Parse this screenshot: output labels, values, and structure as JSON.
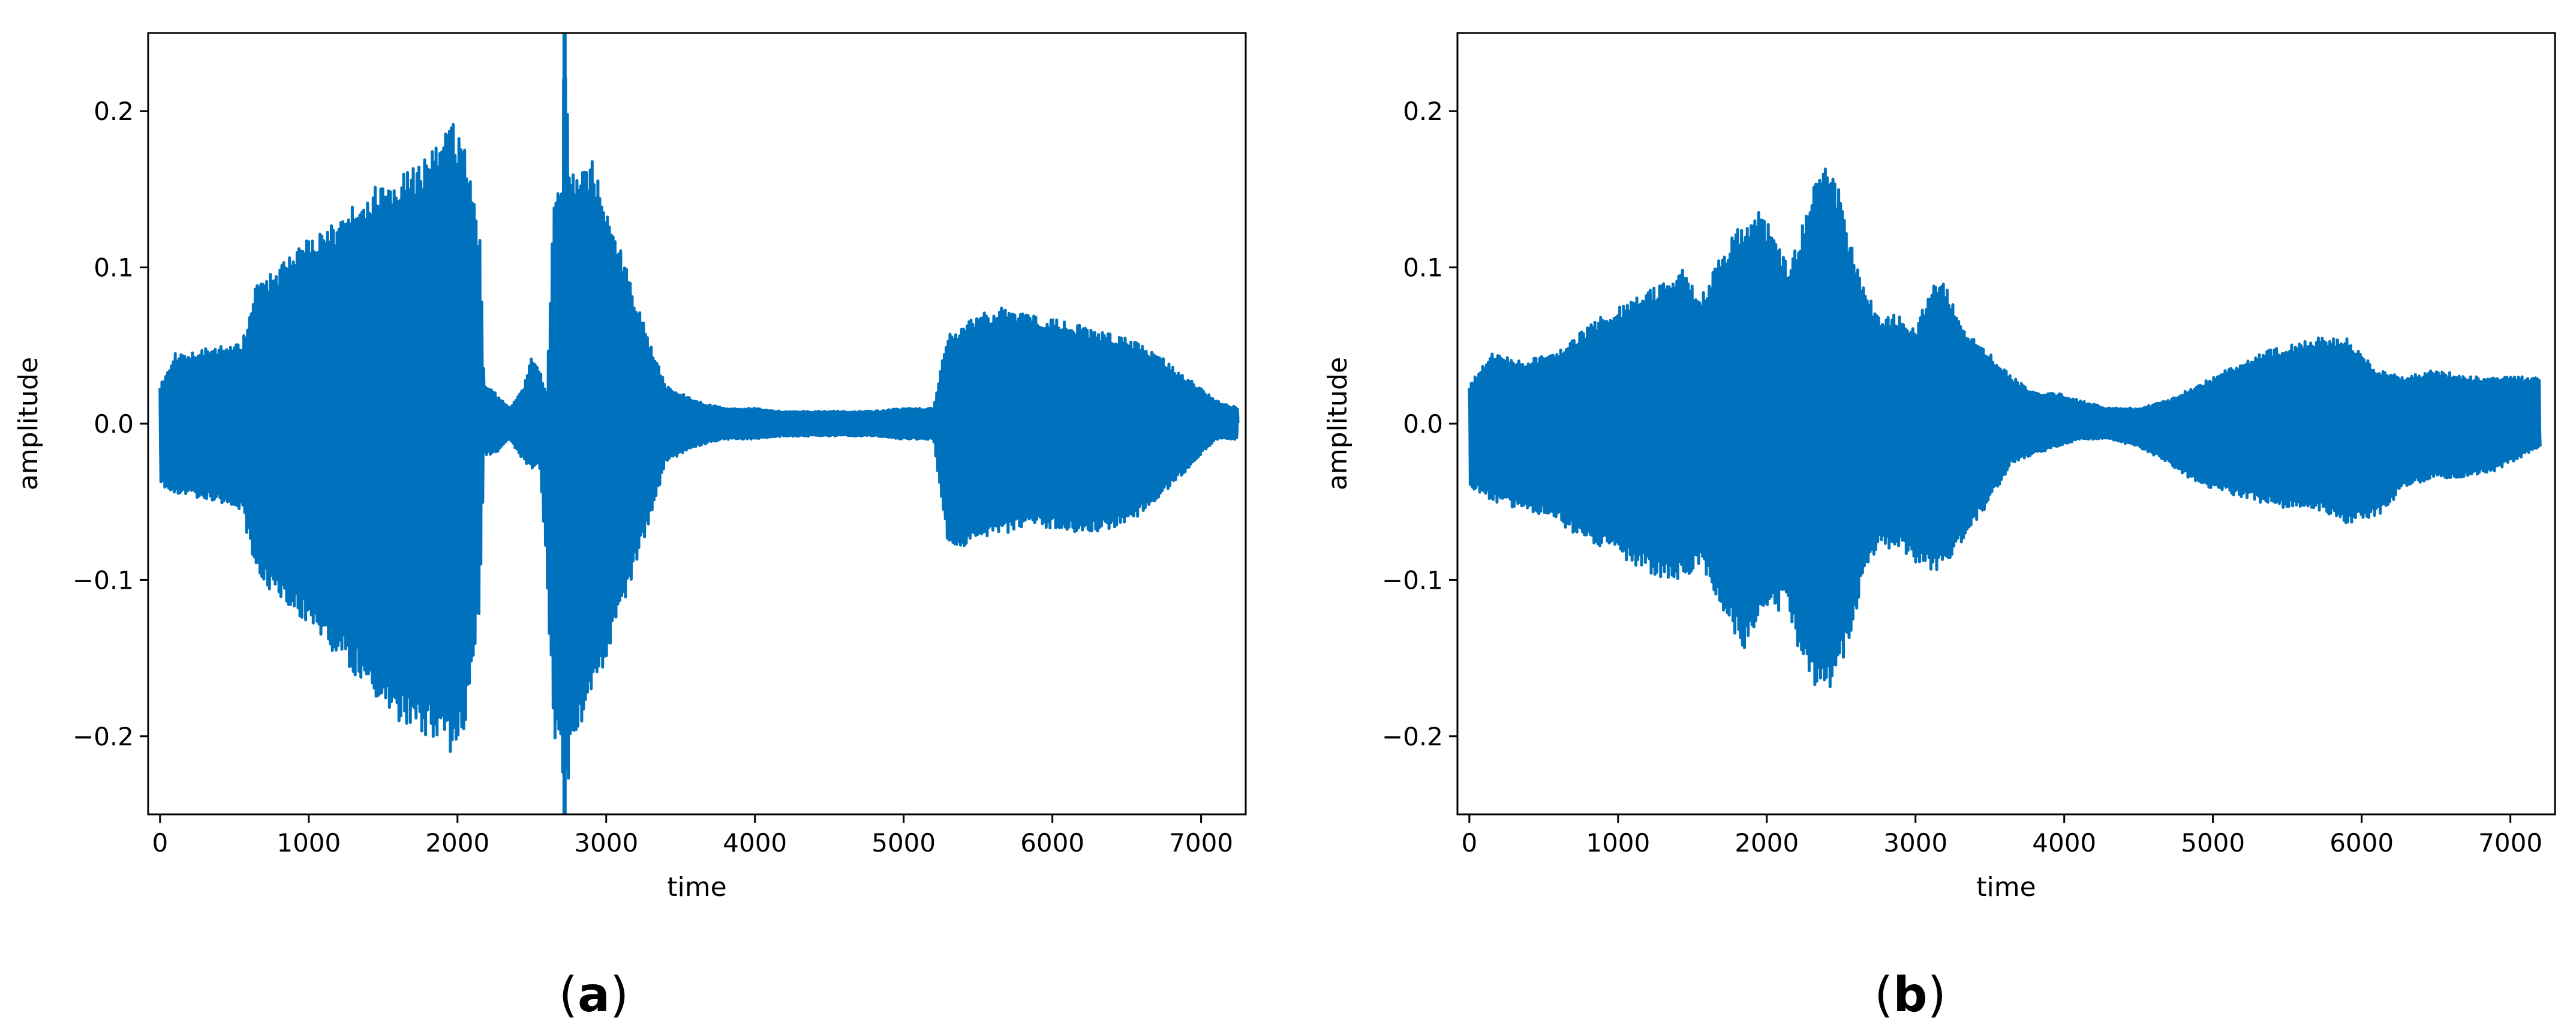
{
  "accent": "#0072bd",
  "chart_data": [
    {
      "type": "line",
      "caption_open": "(",
      "caption_letter": "a",
      "caption_close": ")",
      "xlabel": "time",
      "ylabel": "amplitude",
      "xlim": [
        -80,
        7300
      ],
      "ylim": [
        -0.25,
        0.25
      ],
      "xticks": [
        0,
        1000,
        2000,
        3000,
        4000,
        5000,
        6000,
        7000
      ],
      "xtick_labels": [
        "0",
        "1000",
        "2000",
        "3000",
        "4000",
        "5000",
        "6000",
        "7000"
      ],
      "yticks": [
        -0.2,
        -0.1,
        0.0,
        0.1,
        0.2
      ],
      "ytick_labels": [
        "−0.2",
        "−0.1",
        "0.0",
        "0.1",
        "0.2"
      ],
      "grid": false,
      "series": [
        {
          "color": "#0072bd",
          "envelope_x": [
            0,
            100,
            300,
            550,
            650,
            800,
            1000,
            1200,
            1400,
            1600,
            1800,
            1950,
            2050,
            2150,
            2180,
            2250,
            2350,
            2450,
            2500,
            2550,
            2600,
            2650,
            2700,
            2720,
            2760,
            2800,
            2900,
            3000,
            3100,
            3200,
            3300,
            3400,
            3500,
            3600,
            3700,
            3800,
            4000,
            4200,
            4400,
            4600,
            4800,
            5000,
            5200,
            5300,
            5350,
            5500,
            5700,
            5900,
            6100,
            6300,
            6500,
            6700,
            6900,
            7100,
            7250
          ],
          "envelope_upper": [
            0.025,
            0.045,
            0.048,
            0.052,
            0.09,
            0.1,
            0.12,
            0.13,
            0.15,
            0.16,
            0.17,
            0.195,
            0.18,
            0.12,
            0.025,
            0.02,
            0.01,
            0.025,
            0.045,
            0.035,
            0.02,
            0.15,
            0.16,
            0.25,
            0.16,
            0.16,
            0.17,
            0.14,
            0.11,
            0.08,
            0.05,
            0.025,
            0.02,
            0.015,
            0.012,
            0.01,
            0.01,
            0.008,
            0.008,
            0.008,
            0.008,
            0.01,
            0.01,
            0.06,
            0.06,
            0.07,
            0.075,
            0.07,
            0.065,
            0.06,
            0.055,
            0.045,
            0.03,
            0.015,
            0.01
          ],
          "envelope_lower": [
            -0.04,
            -0.045,
            -0.048,
            -0.055,
            -0.1,
            -0.11,
            -0.13,
            -0.15,
            -0.17,
            -0.19,
            -0.2,
            -0.21,
            -0.2,
            -0.12,
            -0.02,
            -0.02,
            -0.01,
            -0.025,
            -0.03,
            -0.025,
            -0.1,
            -0.2,
            -0.22,
            -0.25,
            -0.22,
            -0.21,
            -0.18,
            -0.15,
            -0.12,
            -0.09,
            -0.06,
            -0.025,
            -0.02,
            -0.015,
            -0.012,
            -0.01,
            -0.01,
            -0.008,
            -0.008,
            -0.008,
            -0.008,
            -0.01,
            -0.01,
            -0.08,
            -0.08,
            -0.075,
            -0.07,
            -0.065,
            -0.07,
            -0.07,
            -0.065,
            -0.05,
            -0.03,
            -0.01,
            -0.01
          ],
          "spike_x": 2720
        }
      ]
    },
    {
      "type": "line",
      "caption_open": "(",
      "caption_letter": "b",
      "caption_close": ")",
      "xlabel": "time",
      "ylabel": "amplitude",
      "xlim": [
        -80,
        7300
      ],
      "ylim": [
        -0.25,
        0.25
      ],
      "xticks": [
        0,
        1000,
        2000,
        3000,
        4000,
        5000,
        6000,
        7000
      ],
      "xtick_labels": [
        "0",
        "1000",
        "2000",
        "3000",
        "4000",
        "5000",
        "6000",
        "7000"
      ],
      "yticks": [
        -0.2,
        -0.1,
        0.0,
        0.1,
        0.2
      ],
      "ytick_labels": [
        "−0.2",
        "−0.1",
        "0.0",
        "0.1",
        "0.2"
      ],
      "grid": false,
      "series": [
        {
          "color": "#0072bd",
          "envelope_x": [
            0,
            150,
            350,
            550,
            700,
            900,
            1100,
            1300,
            1450,
            1550,
            1650,
            1750,
            1850,
            1950,
            2050,
            2150,
            2250,
            2350,
            2450,
            2550,
            2650,
            2750,
            2900,
            3000,
            3100,
            3200,
            3350,
            3500,
            3650,
            3800,
            3950,
            4100,
            4300,
            4500,
            4700,
            4900,
            5100,
            5300,
            5500,
            5700,
            5900,
            6100,
            6300,
            6500,
            6700,
            6900,
            7100,
            7200
          ],
          "envelope_upper": [
            0.025,
            0.045,
            0.04,
            0.045,
            0.055,
            0.07,
            0.08,
            0.09,
            0.1,
            0.08,
            0.1,
            0.12,
            0.13,
            0.14,
            0.12,
            0.1,
            0.13,
            0.17,
            0.165,
            0.12,
            0.09,
            0.07,
            0.07,
            0.06,
            0.09,
            0.09,
            0.06,
            0.045,
            0.03,
            0.02,
            0.02,
            0.015,
            0.01,
            0.01,
            0.015,
            0.025,
            0.035,
            0.045,
            0.05,
            0.055,
            0.055,
            0.035,
            0.03,
            0.035,
            0.03,
            0.03,
            0.03,
            0.03
          ],
          "envelope_lower": [
            -0.04,
            -0.05,
            -0.055,
            -0.06,
            -0.07,
            -0.08,
            -0.09,
            -0.1,
            -0.1,
            -0.09,
            -0.11,
            -0.13,
            -0.145,
            -0.13,
            -0.12,
            -0.12,
            -0.16,
            -0.175,
            -0.17,
            -0.14,
            -0.1,
            -0.08,
            -0.08,
            -0.09,
            -0.095,
            -0.095,
            -0.07,
            -0.05,
            -0.025,
            -0.02,
            -0.015,
            -0.01,
            -0.01,
            -0.015,
            -0.025,
            -0.04,
            -0.045,
            -0.05,
            -0.055,
            -0.055,
            -0.065,
            -0.06,
            -0.04,
            -0.035,
            -0.035,
            -0.03,
            -0.02,
            -0.015
          ]
        }
      ]
    }
  ]
}
